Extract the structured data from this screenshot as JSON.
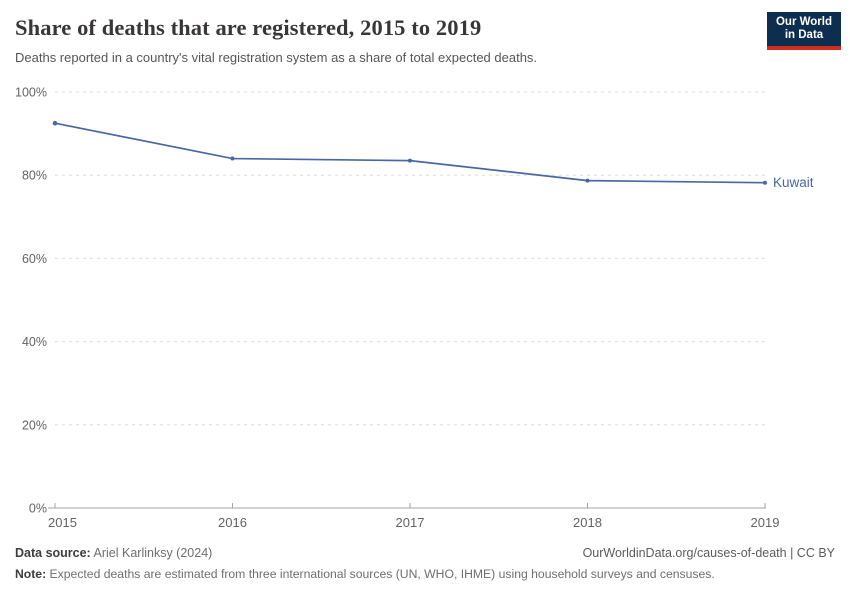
{
  "header": {
    "title": "Share of deaths that are registered, 2015 to 2019",
    "subtitle": "Deaths reported in a country's vital registration system as a share of total expected deaths.",
    "logo": {
      "line1": "Our World",
      "line2": "in Data",
      "bg_color": "#0d2e4e",
      "accent_color": "#d42b21"
    }
  },
  "chart_data": {
    "type": "line",
    "title": "Share of deaths that are registered, 2015 to 2019",
    "subtitle": "Deaths reported in a country's vital registration system as a share of total expected deaths.",
    "x": [
      2015,
      2016,
      2017,
      2018,
      2019
    ],
    "series": [
      {
        "name": "Kuwait",
        "values": [
          92.5,
          84,
          83.5,
          78.7,
          78.2
        ],
        "color": "#4768a3"
      }
    ],
    "ylim": [
      0,
      100
    ],
    "yticks": [
      0,
      20,
      40,
      60,
      80,
      100
    ],
    "ytick_suffix": "%",
    "xlabel": "",
    "ylabel": "",
    "grid": "horizontal-dashed",
    "legend": "end-of-line-label",
    "axis_color": "#a3a3a3",
    "gridline_color": "#dcdcdc"
  },
  "footer": {
    "source_label": "Data source:",
    "source_text": " Ariel Karlinksy (2024)",
    "link_text": "OurWorldinData.org/causes-of-death | CC BY",
    "note_label": "Note:",
    "note_text": " Expected deaths are estimated from three international sources (UN, WHO, IHME) using household surveys and censuses."
  }
}
